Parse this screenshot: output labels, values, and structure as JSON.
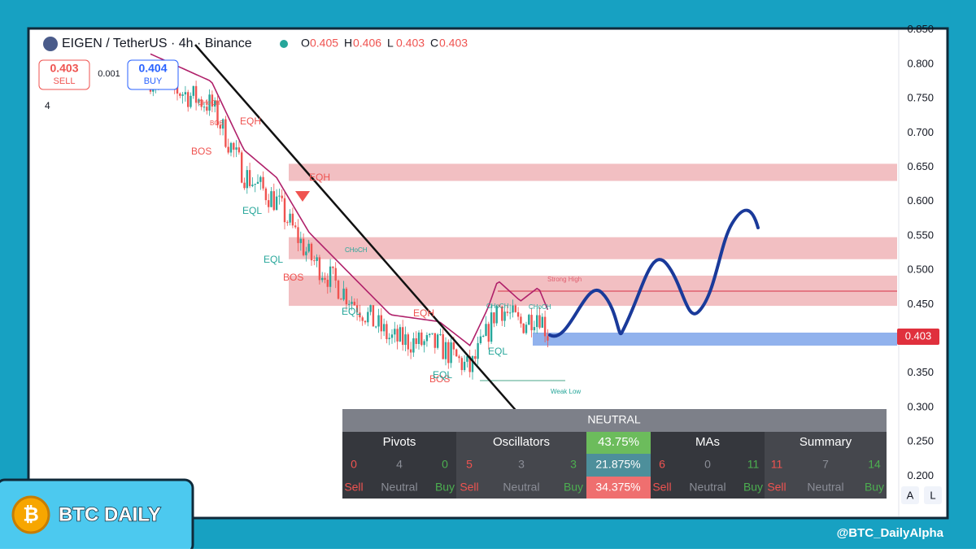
{
  "header": {
    "title": "EIGEN / TetherUS · 4h · Binance",
    "ohlc": [
      {
        "key": "O",
        "value": "0.405"
      },
      {
        "key": "H",
        "value": "0.406"
      },
      {
        "key": "L",
        "value": "0.403"
      },
      {
        "key": "C",
        "value": "0.403"
      }
    ]
  },
  "order": {
    "sell_price": "0.403",
    "sell": "SELL",
    "spread": "0.001",
    "buy_price": "0.404",
    "buy": "BUY"
  },
  "indicators": "4",
  "price_axis": {
    "ticks": [
      "0.850",
      "0.800",
      "0.750",
      "0.700",
      "0.650",
      "0.600",
      "0.550",
      "0.500",
      "0.450",
      "0.350",
      "0.300",
      "0.250",
      "0.200"
    ],
    "last_price": "0.403"
  },
  "annotations": {
    "strong_high": "Strong High",
    "weak_low": "Weak Low",
    "labels": [
      "EQH",
      "BOS",
      "BOS",
      "EQH",
      "EQL",
      "EQL",
      "BOS",
      "EQL",
      "EQH",
      "EQL",
      "EQL",
      "BOS",
      "CHoCH",
      "CHoCH",
      "CHoCH",
      "CHoCH"
    ]
  },
  "table": {
    "title": "NEUTRAL",
    "columns": [
      "Pivots",
      "Oscillators",
      "43.75%",
      "MAs",
      "Summary"
    ],
    "groups": [
      {
        "counts": [
          "0",
          "4",
          "0"
        ],
        "labels": [
          "Sell",
          "Neutral",
          "Buy"
        ]
      },
      {
        "counts": [
          "5",
          "3",
          "3"
        ],
        "labels": [
          "Sell",
          "Neutral",
          "Buy"
        ]
      },
      {
        "counts": [
          "6",
          "0",
          "11"
        ],
        "labels": [
          "Sell",
          "Neutral",
          "Buy"
        ]
      },
      {
        "counts": [
          "11",
          "7",
          "14"
        ],
        "labels": [
          "Sell",
          "Neutral",
          "Buy"
        ]
      }
    ],
    "percents": [
      "21.875%",
      "34.375%"
    ]
  },
  "buttons": [
    "A",
    "L"
  ],
  "brand": "BTC DAILY",
  "handle": "@BTC_DailyAlpha"
}
